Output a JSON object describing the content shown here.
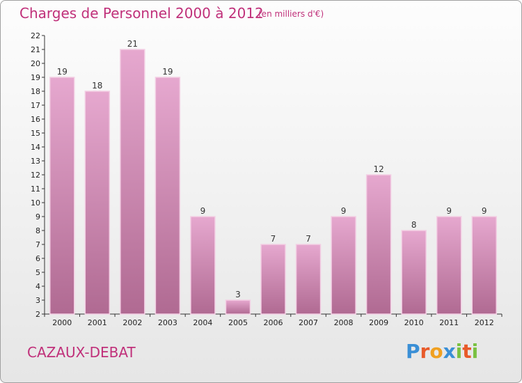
{
  "title": "Charges de Personnel 2000 à 2012",
  "subtitle": "(en milliers d'€)",
  "commune": "CAZAUX-DEBAT",
  "logo": {
    "letters": [
      "P",
      "r",
      "o",
      "x",
      "i",
      "t",
      "i"
    ],
    "colors": [
      "#3a8fd6",
      "#e85a2a",
      "#f0a020",
      "#3a8fd6",
      "#7ac142",
      "#e85a2a",
      "#7ac142"
    ]
  },
  "colors": {
    "bar_top": "#e6a8cf",
    "bar_bottom": "#b06a92",
    "bar_edge": "#f3cfe4",
    "text_accent": "#c0307a"
  },
  "chart_data": {
    "type": "bar",
    "categories": [
      "2000",
      "2001",
      "2002",
      "2003",
      "2004",
      "2005",
      "2006",
      "2007",
      "2008",
      "2009",
      "2010",
      "2011",
      "2012"
    ],
    "values": [
      19,
      18,
      21,
      19,
      9,
      3,
      7,
      7,
      9,
      12,
      8,
      9,
      9
    ],
    "data_labels": [
      "19",
      "18",
      "21",
      "19",
      "9",
      "3",
      "7",
      "7",
      "9",
      "12",
      "8",
      "9",
      "9"
    ],
    "ylim": [
      2,
      22
    ],
    "yticks": [
      "2",
      "3",
      "4",
      "5",
      "6",
      "7",
      "8",
      "9",
      "10",
      "11",
      "12",
      "13",
      "14",
      "15",
      "16",
      "17",
      "18",
      "19",
      "20",
      "21",
      "22"
    ],
    "grid": false,
    "legend": "none"
  }
}
